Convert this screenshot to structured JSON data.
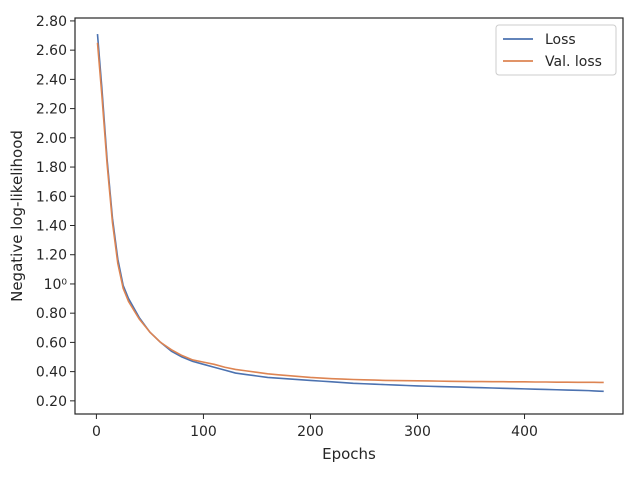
{
  "chart_data": {
    "type": "line",
    "xlabel": "Epochs",
    "ylabel": "Negative log-likelihood",
    "xlim": [
      -20,
      492
    ],
    "ylim": [
      0.11,
      2.82
    ],
    "x_ticks": [
      {
        "value": 0,
        "label": "0"
      },
      {
        "value": 100,
        "label": "100"
      },
      {
        "value": 200,
        "label": "200"
      },
      {
        "value": 300,
        "label": "300"
      },
      {
        "value": 400,
        "label": "400"
      }
    ],
    "y_ticks": [
      {
        "value": 0.2,
        "label": "0.20"
      },
      {
        "value": 0.4,
        "label": "0.40"
      },
      {
        "value": 0.6,
        "label": "0.60"
      },
      {
        "value": 0.8,
        "label": "0.80"
      },
      {
        "value": 1.0,
        "label": "10⁰"
      },
      {
        "value": 1.2,
        "label": "1.20"
      },
      {
        "value": 1.4,
        "label": "1.40"
      },
      {
        "value": 1.6,
        "label": "1.60"
      },
      {
        "value": 1.8,
        "label": "1.80"
      },
      {
        "value": 2.0,
        "label": "2.00"
      },
      {
        "value": 2.2,
        "label": "2.20"
      },
      {
        "value": 2.4,
        "label": "2.40"
      },
      {
        "value": 2.6,
        "label": "2.60"
      },
      {
        "value": 2.8,
        "label": "2.80"
      }
    ],
    "legend_position": "top-right",
    "series": [
      {
        "name": "Loss",
        "color": "#4c72b0",
        "x": [
          1,
          5,
          10,
          15,
          20,
          25,
          30,
          40,
          50,
          60,
          70,
          80,
          90,
          100,
          110,
          120,
          130,
          140,
          150,
          160,
          170,
          180,
          190,
          200,
          210,
          220,
          230,
          240,
          250,
          260,
          270,
          280,
          290,
          300,
          310,
          320,
          330,
          340,
          350,
          360,
          370,
          380,
          390,
          400,
          410,
          420,
          430,
          440,
          450,
          460,
          465,
          470,
          474
        ],
        "y": [
          2.71,
          2.35,
          1.85,
          1.45,
          1.17,
          0.99,
          0.9,
          0.77,
          0.67,
          0.6,
          0.54,
          0.5,
          0.47,
          0.45,
          0.43,
          0.41,
          0.39,
          0.38,
          0.37,
          0.36,
          0.355,
          0.35,
          0.345,
          0.34,
          0.335,
          0.33,
          0.325,
          0.32,
          0.317,
          0.314,
          0.311,
          0.308,
          0.305,
          0.302,
          0.3,
          0.298,
          0.296,
          0.294,
          0.292,
          0.29,
          0.288,
          0.286,
          0.284,
          0.282,
          0.28,
          0.278,
          0.276,
          0.274,
          0.272,
          0.27,
          0.268,
          0.266,
          0.265
        ]
      },
      {
        "name": "Val. loss",
        "color": "#dd8452",
        "x": [
          1,
          5,
          10,
          15,
          20,
          25,
          30,
          40,
          50,
          60,
          70,
          80,
          90,
          100,
          110,
          120,
          130,
          140,
          150,
          160,
          170,
          180,
          190,
          200,
          210,
          220,
          230,
          240,
          250,
          260,
          270,
          280,
          290,
          300,
          310,
          320,
          330,
          340,
          350,
          360,
          370,
          380,
          390,
          400,
          410,
          420,
          430,
          440,
          450,
          460,
          465,
          470,
          474
        ],
        "y": [
          2.65,
          2.3,
          1.82,
          1.42,
          1.14,
          0.97,
          0.88,
          0.76,
          0.67,
          0.6,
          0.55,
          0.51,
          0.48,
          0.465,
          0.45,
          0.43,
          0.415,
          0.405,
          0.395,
          0.385,
          0.378,
          0.372,
          0.366,
          0.36,
          0.356,
          0.352,
          0.349,
          0.346,
          0.344,
          0.342,
          0.34,
          0.339,
          0.338,
          0.337,
          0.336,
          0.335,
          0.334,
          0.333,
          0.332,
          0.332,
          0.331,
          0.331,
          0.33,
          0.33,
          0.329,
          0.329,
          0.328,
          0.328,
          0.327,
          0.327,
          0.327,
          0.326,
          0.326
        ]
      }
    ]
  }
}
